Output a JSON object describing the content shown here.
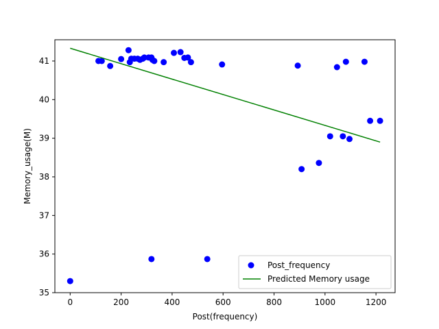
{
  "chart_data": {
    "type": "scatter",
    "title": "",
    "xlabel": "Post(frequency)",
    "ylabel": "Memory_usage(M)",
    "xlim": [
      -60,
      1275
    ],
    "ylim": [
      35.0,
      41.55
    ],
    "xticks": [
      0,
      200,
      400,
      600,
      800,
      1000,
      1200
    ],
    "yticks": [
      35,
      36,
      37,
      38,
      39,
      40,
      41
    ],
    "grid": false,
    "legend_position": "lower right",
    "series": [
      {
        "name": "Post_frequency",
        "kind": "scatter",
        "color": "#0000ff",
        "points": [
          [
            0,
            35.3
          ],
          [
            111,
            41.0
          ],
          [
            124,
            41.0
          ],
          [
            157,
            40.87
          ],
          [
            200,
            41.05
          ],
          [
            229,
            41.28
          ],
          [
            234,
            40.97
          ],
          [
            240,
            41.06
          ],
          [
            252,
            41.06
          ],
          [
            265,
            41.06
          ],
          [
            274,
            41.03
          ],
          [
            285,
            41.06
          ],
          [
            291,
            41.09
          ],
          [
            308,
            41.09
          ],
          [
            319,
            41.09
          ],
          [
            323,
            41.03
          ],
          [
            330,
            41.0
          ],
          [
            319,
            35.87
          ],
          [
            367,
            40.97
          ],
          [
            407,
            41.21
          ],
          [
            433,
            41.23
          ],
          [
            448,
            41.08
          ],
          [
            462,
            41.09
          ],
          [
            474,
            40.97
          ],
          [
            538,
            35.87
          ],
          [
            596,
            40.91
          ],
          [
            893,
            40.88
          ],
          [
            908,
            38.2
          ],
          [
            976,
            38.36
          ],
          [
            1020,
            39.05
          ],
          [
            1047,
            40.84
          ],
          [
            1070,
            39.05
          ],
          [
            1082,
            40.98
          ],
          [
            1096,
            38.98
          ],
          [
            1155,
            40.98
          ],
          [
            1177,
            39.45
          ],
          [
            1216,
            39.45
          ]
        ]
      },
      {
        "name": "Predicted Memory usage",
        "kind": "line",
        "color": "#008000",
        "points": [
          [
            0,
            41.33
          ],
          [
            1216,
            38.9
          ]
        ]
      }
    ]
  }
}
